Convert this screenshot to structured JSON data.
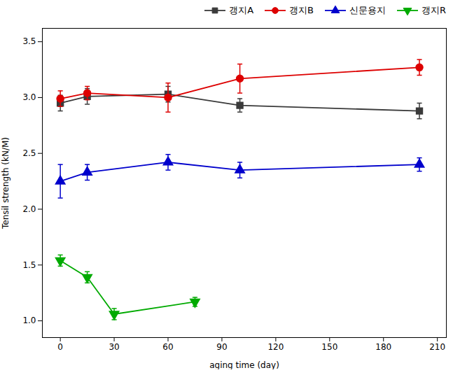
{
  "chart_data": {
    "type": "line",
    "xlabel": "aging time (day)",
    "ylabel": "Tensil strength (kN/M)",
    "xlim": [
      -10,
      215
    ],
    "ylim": [
      0.85,
      3.62
    ],
    "xticks": [
      0,
      30,
      60,
      90,
      120,
      150,
      180,
      210
    ],
    "yticks": [
      {
        "value": 1,
        "label": "1.0"
      },
      1.5,
      {
        "value": 2,
        "label": "2.0"
      },
      2.5,
      {
        "value": 3,
        "label": "3.0"
      },
      3.5
    ],
    "grid": false,
    "legend": "top-right",
    "series": [
      {
        "name": "갱지A",
        "color": "#3a3a3a",
        "marker": "square",
        "line_style": "solid",
        "x": [
          0,
          15,
          60,
          100,
          200
        ],
        "values": [
          2.95,
          3.01,
          3.03,
          2.93,
          2.88
        ],
        "yerr": [
          0.07,
          0.07,
          0.07,
          0.06,
          0.07
        ]
      },
      {
        "name": "갱지B",
        "color": "#dd0000",
        "marker": "circle",
        "line_style": "solid",
        "x": [
          0,
          15,
          60,
          100,
          200
        ],
        "values": [
          2.99,
          3.04,
          3.0,
          3.17,
          3.27
        ],
        "yerr": [
          0.07,
          0.06,
          0.13,
          0.13,
          0.07
        ]
      },
      {
        "name": "신문용지",
        "color": "#0000cc",
        "marker": "triangle-up",
        "line_style": "solid",
        "x": [
          0,
          15,
          60,
          100,
          200
        ],
        "values": [
          2.25,
          2.33,
          2.42,
          2.35,
          2.4
        ],
        "yerr": [
          0.15,
          0.07,
          0.07,
          0.07,
          0.06
        ]
      },
      {
        "name": "갱지R",
        "color": "#00aa00",
        "marker": "triangle-down",
        "line_style": "solid",
        "x": [
          0,
          15,
          30,
          75
        ],
        "values": [
          1.54,
          1.39,
          1.06,
          1.17
        ],
        "yerr": [
          0.05,
          0.05,
          0.05,
          0.04
        ]
      }
    ]
  }
}
